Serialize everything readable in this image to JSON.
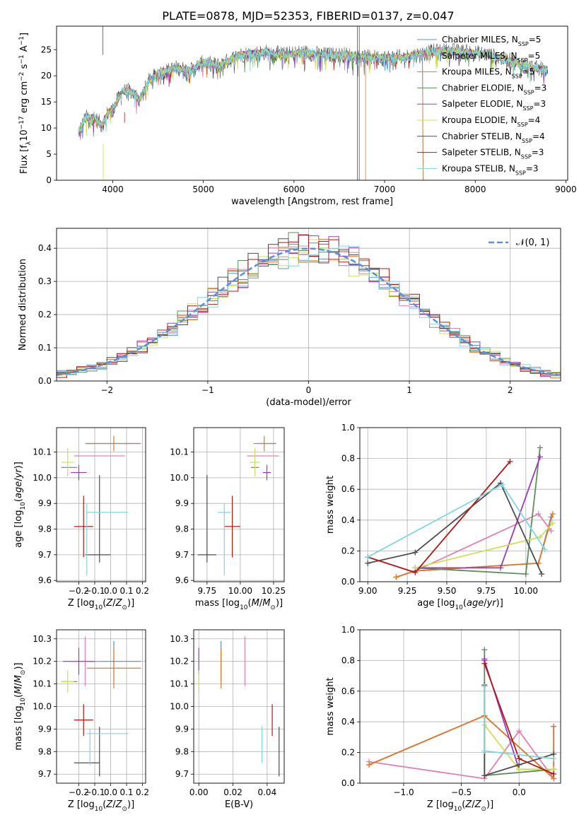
{
  "title": "PLATE=0878, MJD=52353, FIBERID=0137, z=0.047",
  "colors": {
    "chabrier_miles": "#5c8fcf",
    "salpeter_miles": "#e07fb0",
    "kroupa_miles": "#e07a2a",
    "chabrier_elodie": "#5a8f5a",
    "salpeter_elodie": "#9a3cb8",
    "kroupa_elodie": "#cce050",
    "chabrier_stelib": "#4d4d4d",
    "salpeter_stelib": "#b01818",
    "kroupa_stelib": "#7fd6dd",
    "grid": "#b0b0b0",
    "gauss": "#5b8fd6"
  },
  "chart_data": [
    {
      "id": "spectrum",
      "type": "line",
      "xlabel": "wavelength [Angstrom, rest frame]",
      "ylabel": "Flux [f_λ10^-17 erg cm^-2 s^-1 A^-1]",
      "xlim": [
        3380,
        9020
      ],
      "ylim": [
        0,
        29.5
      ],
      "xticks": [
        4000,
        5000,
        6000,
        7000,
        8000,
        9000
      ],
      "yticks": [
        0,
        5,
        10,
        15,
        20,
        25
      ],
      "grid": false,
      "legend_position": "right",
      "legend": [
        {
          "model": "Chabrier MILES",
          "n": "5",
          "color_key": "chabrier_miles"
        },
        {
          "model": "Salpeter MILES",
          "n": "5",
          "color_key": "salpeter_miles"
        },
        {
          "model": "Kroupa MILES",
          "n": "5",
          "color_key": "kroupa_miles"
        },
        {
          "model": "Chabrier ELODIE",
          "n": "3",
          "color_key": "chabrier_elodie"
        },
        {
          "model": "Salpeter ELODIE",
          "n": "3",
          "color_key": "salpeter_elodie"
        },
        {
          "model": "Kroupa ELODIE",
          "n": "4",
          "color_key": "kroupa_elodie"
        },
        {
          "model": "Chabrier STELIB",
          "n": "4",
          "color_key": "chabrier_stelib"
        },
        {
          "model": "Salpeter STELIB",
          "n": "3",
          "color_key": "salpeter_stelib"
        },
        {
          "model": "Kroupa STELIB",
          "n": "3",
          "color_key": "kroupa_stelib"
        }
      ],
      "continuum": [
        [
          3620,
          9
        ],
        [
          3700,
          12
        ],
        [
          3800,
          12
        ],
        [
          3880,
          10.5
        ],
        [
          3950,
          13
        ],
        [
          4000,
          13.5
        ],
        [
          4100,
          17
        ],
        [
          4200,
          17
        ],
        [
          4300,
          15.5
        ],
        [
          4400,
          19
        ],
        [
          4500,
          20.5
        ],
        [
          4700,
          21.5
        ],
        [
          4860,
          21
        ],
        [
          5000,
          22.5
        ],
        [
          5175,
          22
        ],
        [
          5400,
          24
        ],
        [
          5700,
          24.5
        ],
        [
          5900,
          24
        ],
        [
          6100,
          24.5
        ],
        [
          6300,
          24
        ],
        [
          6563,
          24
        ],
        [
          6800,
          23.5
        ],
        [
          7000,
          23.5
        ],
        [
          7200,
          23.5
        ],
        [
          7500,
          24.5
        ],
        [
          7700,
          24.8
        ],
        [
          7900,
          24.5
        ],
        [
          8100,
          24.2
        ],
        [
          8300,
          23.3
        ],
        [
          8500,
          22.2
        ],
        [
          8700,
          21.3
        ],
        [
          8800,
          21
        ]
      ],
      "spikes": [
        {
          "series": "chabrier_stelib",
          "x": 3890,
          "y_from": 24,
          "y_to": 29.5
        },
        {
          "series": "chabrier_stelib",
          "x": 6700,
          "y_from": 0,
          "y_to": 29.5
        },
        {
          "series": "chabrier_stelib",
          "x": 6720,
          "y_from": 0,
          "y_to": 29.5
        },
        {
          "series": "kroupa_miles",
          "x": 6790,
          "y_from": 0,
          "y_to": 23
        },
        {
          "series": "kroupa_elodie",
          "x": 3895,
          "y_from": 0,
          "y_to": 7
        },
        {
          "series": "salpeter_stelib",
          "x": 4130,
          "y_from": 11,
          "y_to": 13
        }
      ],
      "cutoffs": [
        {
          "series": "chabrier_miles",
          "x_end": 7420
        },
        {
          "series": "salpeter_miles",
          "x_end": 7420
        },
        {
          "series": "kroupa_miles",
          "x_end": 7420
        }
      ]
    },
    {
      "id": "residual_hist",
      "type": "histogram",
      "xlabel": "(data-model)/error",
      "ylabel": "Normed distribution",
      "xlim": [
        -2.5,
        2.5
      ],
      "ylim": [
        0,
        0.46
      ],
      "xticks": [
        -2,
        -1,
        0,
        1,
        2
      ],
      "yticks": [
        0.0,
        0.1,
        0.2,
        0.3,
        0.4
      ],
      "bin_width": 0.1,
      "grid": true,
      "legend_position": "top-right",
      "legend": [
        {
          "label": "𝒩(0, 1)",
          "style": "dashed",
          "color_key": "gauss"
        }
      ],
      "gaussian": {
        "mean": 0,
        "sigma": 1,
        "peak": 0.399
      }
    },
    {
      "id": "age_vs_Z",
      "type": "errorbar",
      "xlabel": "Z [log10(Z/Z⊙)]",
      "ylabel": "age [log10(age/yr)]",
      "xlim": [
        -0.34,
        0.22
      ],
      "ylim": [
        9.595,
        10.195
      ],
      "xticks": [
        -0.2,
        -0.1,
        0.0,
        0.1,
        0.2
      ],
      "yticks": [
        9.6,
        9.7,
        9.8,
        9.9,
        10.0,
        10.1
      ],
      "grid": true,
      "points": [
        {
          "s": "chabrier_miles",
          "x": 0.01,
          "xerr": 0.17,
          "y": 10.133,
          "yerr": 0.0
        },
        {
          "s": "salpeter_miles",
          "x": -0.07,
          "xerr": 0.16,
          "y": 10.085,
          "yerr": 0.0
        },
        {
          "s": "kroupa_miles",
          "x": 0.02,
          "xerr": 0.17,
          "y": 10.133,
          "yerr": 0.03
        },
        {
          "s": "chabrier_elodie",
          "x": -0.26,
          "xerr": 0.05,
          "y": 10.04,
          "yerr": 0.0
        },
        {
          "s": "salpeter_elodie",
          "x": -0.2,
          "xerr": 0.05,
          "y": 10.02,
          "yerr": 0.03
        },
        {
          "s": "kroupa_elodie",
          "x": -0.27,
          "xerr": 0.04,
          "y": 10.06,
          "yerr": 0.055
        },
        {
          "s": "chabrier_stelib",
          "x": -0.08,
          "xerr": 0.08,
          "y": 9.7,
          "yerr": 0.0
        },
        {
          "s": "chabrier_stelib",
          "x": -0.07,
          "xerr": 0.0,
          "y": 9.84,
          "yerr": 0.17
        },
        {
          "s": "salpeter_stelib",
          "x": -0.17,
          "xerr": 0.06,
          "y": 9.81,
          "yerr": 0.12
        },
        {
          "s": "kroupa_stelib",
          "x": -0.02,
          "xerr": 0.13,
          "y": 9.865,
          "yerr": 0.0
        },
        {
          "s": "kroupa_stelib",
          "x": -0.15,
          "xerr": 0.0,
          "y": 9.76,
          "yerr": 0.14
        }
      ]
    },
    {
      "id": "age_vs_mass",
      "type": "errorbar",
      "xlabel": "mass [log10(M/M⊙)]",
      "ylabel": "",
      "xlim": [
        9.65,
        10.33
      ],
      "ylim": [
        9.595,
        10.195
      ],
      "xticks": [
        9.75,
        10.0,
        10.25
      ],
      "yticks": [
        9.6,
        9.7,
        9.8,
        9.9,
        10.0,
        10.1
      ],
      "grid": true,
      "points": [
        {
          "s": "chabrier_miles",
          "x": 10.2,
          "xerr": 0.07,
          "y": 10.133,
          "yerr": 0.0
        },
        {
          "s": "salpeter_miles",
          "x": 10.17,
          "xerr": 0.12,
          "y": 10.085,
          "yerr": 0.0
        },
        {
          "s": "kroupa_miles",
          "x": 10.18,
          "xerr": 0.08,
          "y": 10.133,
          "yerr": 0.03
        },
        {
          "s": "chabrier_elodie",
          "x": 10.11,
          "xerr": 0.03,
          "y": 10.04,
          "yerr": 0.0
        },
        {
          "s": "salpeter_elodie",
          "x": 10.2,
          "xerr": 0.03,
          "y": 10.02,
          "yerr": 0.03
        },
        {
          "s": "kroupa_elodie",
          "x": 10.11,
          "xerr": 0.04,
          "y": 10.06,
          "yerr": 0.055
        },
        {
          "s": "chabrier_stelib",
          "x": 9.75,
          "xerr": 0.07,
          "y": 9.7,
          "yerr": 0.0
        },
        {
          "s": "chabrier_stelib",
          "x": 9.75,
          "xerr": 0.0,
          "y": 9.84,
          "yerr": 0.17
        },
        {
          "s": "salpeter_stelib",
          "x": 9.94,
          "xerr": 0.06,
          "y": 9.81,
          "yerr": 0.12
        },
        {
          "s": "kroupa_stelib",
          "x": 9.88,
          "xerr": 0.05,
          "y": 9.865,
          "yerr": 0.0
        },
        {
          "s": "kroupa_stelib",
          "x": 9.88,
          "xerr": 0.0,
          "y": 9.76,
          "yerr": 0.14
        }
      ]
    },
    {
      "id": "weight_vs_age",
      "type": "line",
      "xlabel": "age [log10(age/yr)]",
      "ylabel": "mass weight",
      "xlim": [
        8.95,
        10.22
      ],
      "ylim": [
        0,
        1
      ],
      "xticks": [
        9.0,
        9.25,
        9.5,
        9.75,
        10.0
      ],
      "yticks": [
        0.0,
        0.2,
        0.4,
        0.6,
        0.8,
        1.0
      ],
      "grid": true,
      "series": [
        {
          "s": "chabrier_miles",
          "x": [
            9.18,
            9.3,
            10.08,
            10.16
          ],
          "y": [
            0.03,
            0.07,
            0.12,
            0.42
          ]
        },
        {
          "s": "salpeter_miles",
          "x": [
            9.18,
            9.3,
            10.08,
            10.16
          ],
          "y": [
            0.03,
            0.07,
            0.44,
            0.33
          ]
        },
        {
          "s": "kroupa_miles",
          "x": [
            9.18,
            9.3,
            10.08,
            10.17
          ],
          "y": [
            0.03,
            0.07,
            0.12,
            0.44
          ]
        },
        {
          "s": "chabrier_elodie",
          "x": [
            9.3,
            10.0,
            10.09
          ],
          "y": [
            0.09,
            0.05,
            0.87
          ]
        },
        {
          "s": "salpeter_elodie",
          "x": [
            9.3,
            9.84,
            10.09
          ],
          "y": [
            0.09,
            0.09,
            0.81
          ]
        },
        {
          "s": "kroupa_elodie",
          "x": [
            9.3,
            10.09,
            10.17
          ],
          "y": [
            0.09,
            0.29,
            0.38
          ]
        },
        {
          "s": "chabrier_stelib",
          "x": [
            9.0,
            9.3,
            9.84,
            10.1
          ],
          "y": [
            0.12,
            0.19,
            0.64,
            0.05
          ]
        },
        {
          "s": "salpeter_stelib",
          "x": [
            9.0,
            9.3,
            9.9
          ],
          "y": [
            0.16,
            0.06,
            0.78
          ]
        },
        {
          "s": "kroupa_stelib",
          "x": [
            9.0,
            9.85,
            10.12
          ],
          "y": [
            0.16,
            0.63,
            0.21
          ]
        }
      ]
    },
    {
      "id": "mass_vs_Z",
      "type": "errorbar",
      "xlabel": "Z [log10(Z/Z⊙)]",
      "ylabel": "mass [log10(M/M⊙)]",
      "xlim": [
        -0.34,
        0.22
      ],
      "ylim": [
        9.66,
        10.34
      ],
      "xticks": [
        -0.2,
        -0.1,
        0.0,
        0.1,
        0.2
      ],
      "yticks": [
        9.7,
        9.8,
        9.9,
        10.0,
        10.1,
        10.2,
        10.3
      ],
      "grid": true,
      "points": [
        {
          "s": "chabrier_miles",
          "x": 0.02,
          "xerr": 0.17,
          "y": 10.2,
          "yerr": 0.09
        },
        {
          "s": "salpeter_miles",
          "x": -0.16,
          "xerr": 0.1,
          "y": 10.2,
          "yerr": 0.11
        },
        {
          "s": "kroupa_miles",
          "x": 0.02,
          "xerr": 0.17,
          "y": 10.17,
          "yerr": 0.09
        },
        {
          "s": "chabrier_elodie",
          "x": -0.26,
          "xerr": 0.05,
          "y": 10.11,
          "yerr": 0.0
        },
        {
          "s": "salpeter_elodie",
          "x": -0.2,
          "xerr": 0.1,
          "y": 10.2,
          "yerr": 0.06
        },
        {
          "s": "kroupa_elodie",
          "x": -0.27,
          "xerr": 0.04,
          "y": 10.11,
          "yerr": 0.05
        },
        {
          "s": "chabrier_stelib",
          "x": -0.15,
          "xerr": 0.08,
          "y": 9.75,
          "yerr": 0.0
        },
        {
          "s": "chabrier_stelib",
          "x": -0.07,
          "xerr": 0.0,
          "y": 9.8,
          "yerr": 0.11
        },
        {
          "s": "salpeter_stelib",
          "x": -0.17,
          "xerr": 0.06,
          "y": 9.94,
          "yerr": 0.07
        },
        {
          "s": "kroupa_stelib",
          "x": -0.02,
          "xerr": 0.13,
          "y": 9.88,
          "yerr": 0.0
        },
        {
          "s": "kroupa_stelib",
          "x": -0.13,
          "xerr": 0.0,
          "y": 9.82,
          "yerr": 0.08
        }
      ]
    },
    {
      "id": "mass_vs_ebv",
      "type": "errorbar",
      "xlabel": "E(B-V)",
      "ylabel": "",
      "xlim": [
        -0.003,
        0.05
      ],
      "ylim": [
        9.66,
        10.34
      ],
      "xticks": [
        0.0,
        0.02,
        0.04
      ],
      "yticks": [
        9.7,
        9.8,
        9.9,
        10.0,
        10.1,
        10.2,
        10.3
      ],
      "grid": true,
      "points": [
        {
          "s": "chabrier_miles",
          "x": 0.013,
          "xerr": 0.0,
          "y": 10.2,
          "yerr": 0.09
        },
        {
          "s": "salpeter_miles",
          "x": 0.027,
          "xerr": 0.0,
          "y": 10.2,
          "yerr": 0.11
        },
        {
          "s": "kroupa_miles",
          "x": 0.013,
          "xerr": 0.0,
          "y": 10.17,
          "yerr": 0.09
        },
        {
          "s": "salpeter_elodie",
          "x": 0.0,
          "xerr": 0.0,
          "y": 10.2,
          "yerr": 0.06
        },
        {
          "s": "kroupa_elodie",
          "x": 0.0,
          "xerr": 0.0,
          "y": 10.11,
          "yerr": 0.05
        },
        {
          "s": "chabrier_stelib",
          "x": 0.047,
          "xerr": 0.0,
          "y": 9.8,
          "yerr": 0.11
        },
        {
          "s": "salpeter_stelib",
          "x": 0.043,
          "xerr": 0.0,
          "y": 9.94,
          "yerr": 0.07
        },
        {
          "s": "kroupa_stelib",
          "x": 0.037,
          "xerr": 0.0,
          "y": 9.83,
          "yerr": 0.08
        }
      ]
    },
    {
      "id": "weight_vs_Z",
      "type": "line",
      "xlabel": "Z [log10(Z/Z⊙)]",
      "ylabel": "mass weight",
      "xlim": [
        -1.38,
        0.36
      ],
      "ylim": [
        0,
        1
      ],
      "xticks": [
        -1.0,
        -0.5,
        0.0
      ],
      "yticks": [
        0.0,
        0.2,
        0.4,
        0.6,
        0.8,
        1.0
      ],
      "grid": true,
      "series": [
        {
          "s": "chabrier_miles",
          "x": [
            -1.3,
            -0.3,
            0.3,
            0.3
          ],
          "y": [
            0.12,
            0.44,
            0.03,
            0.37
          ]
        },
        {
          "s": "salpeter_miles",
          "x": [
            -1.3,
            -0.3,
            0.0,
            0.3
          ],
          "y": [
            0.14,
            0.03,
            0.34,
            0.03
          ]
        },
        {
          "s": "kroupa_miles",
          "x": [
            -1.3,
            -0.3,
            0.3,
            0.3
          ],
          "y": [
            0.12,
            0.44,
            0.03,
            0.37
          ]
        },
        {
          "s": "chabrier_elodie",
          "x": [
            -0.3,
            -0.3,
            0.3
          ],
          "y": [
            0.87,
            0.05,
            0.09
          ]
        },
        {
          "s": "salpeter_elodie",
          "x": [
            -0.3,
            -0.3,
            0.0,
            0.3
          ],
          "y": [
            0.81,
            0.8,
            0.09,
            0.09
          ]
        },
        {
          "s": "kroupa_elodie",
          "x": [
            -0.3,
            0.0,
            0.3
          ],
          "y": [
            0.38,
            0.09,
            0.09
          ]
        },
        {
          "s": "chabrier_stelib",
          "x": [
            -0.3,
            -0.3,
            0.0,
            0.3
          ],
          "y": [
            0.64,
            0.05,
            0.12,
            0.19
          ]
        },
        {
          "s": "salpeter_stelib",
          "x": [
            -0.3,
            0.0,
            0.3
          ],
          "y": [
            0.78,
            0.16,
            0.06
          ]
        },
        {
          "s": "kroupa_stelib",
          "x": [
            -0.3,
            -0.3,
            0.3
          ],
          "y": [
            0.63,
            0.21,
            0.16
          ]
        }
      ]
    }
  ]
}
